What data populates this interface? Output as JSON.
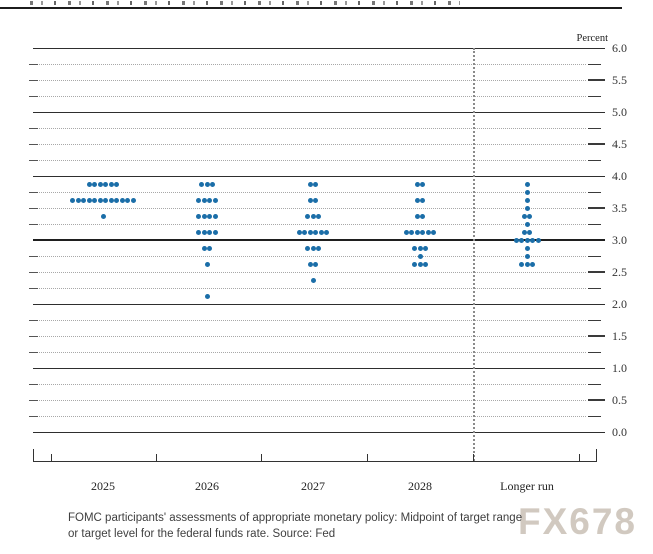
{
  "header": {
    "clipped_note": ""
  },
  "chart_data": {
    "type": "scatter",
    "subtype": "fomc-dot-plot",
    "unit_label": "Percent",
    "dot_color": "#1b6ea8",
    "y_axis": {
      "min": 0.0,
      "max": 6.0,
      "label_step": 0.5,
      "grid_step": 0.25,
      "tick_labels": [
        {
          "v": 6.0,
          "label": "6.0"
        },
        {
          "v": 5.5,
          "label": "5.5"
        },
        {
          "v": 5.0,
          "label": "5.0"
        },
        {
          "v": 4.5,
          "label": "4.5"
        },
        {
          "v": 4.0,
          "label": "4.0"
        },
        {
          "v": 3.5,
          "label": "3.5"
        },
        {
          "v": 3.0,
          "label": "3.0"
        },
        {
          "v": 2.5,
          "label": "2.5"
        },
        {
          "v": 2.0,
          "label": "2.0"
        },
        {
          "v": 1.5,
          "label": "1.5"
        },
        {
          "v": 1.0,
          "label": "1.0"
        },
        {
          "v": 0.5,
          "label": "0.5"
        },
        {
          "v": 0.0,
          "label": "0.0"
        }
      ],
      "solid_lines_at_integers": true,
      "bold_line_value": 3.0
    },
    "categories": [
      "2025",
      "2026",
      "2027",
      "2028",
      "Longer run"
    ],
    "separator_before_category": "Longer run",
    "series": [
      {
        "category": "2025",
        "dots": [
          {
            "value": 3.875,
            "count": 6
          },
          {
            "value": 3.625,
            "count": 12
          },
          {
            "value": 3.375,
            "count": 1
          }
        ]
      },
      {
        "category": "2026",
        "dots": [
          {
            "value": 3.875,
            "count": 3
          },
          {
            "value": 3.625,
            "count": 4
          },
          {
            "value": 3.375,
            "count": 4
          },
          {
            "value": 3.125,
            "count": 4
          },
          {
            "value": 2.875,
            "count": 2
          },
          {
            "value": 2.625,
            "count": 1
          },
          {
            "value": 2.125,
            "count": 1
          }
        ]
      },
      {
        "category": "2027",
        "dots": [
          {
            "value": 3.875,
            "count": 2
          },
          {
            "value": 3.625,
            "count": 2
          },
          {
            "value": 3.375,
            "count": 3
          },
          {
            "value": 3.125,
            "count": 6
          },
          {
            "value": 2.875,
            "count": 3
          },
          {
            "value": 2.625,
            "count": 2
          },
          {
            "value": 2.375,
            "count": 1
          }
        ]
      },
      {
        "category": "2028",
        "dots": [
          {
            "value": 3.875,
            "count": 2
          },
          {
            "value": 3.625,
            "count": 2
          },
          {
            "value": 3.375,
            "count": 2
          },
          {
            "value": 3.125,
            "count": 6
          },
          {
            "value": 2.875,
            "count": 3
          },
          {
            "value": 2.75,
            "count": 1
          },
          {
            "value": 2.625,
            "count": 3
          }
        ]
      },
      {
        "category": "Longer run",
        "dots": [
          {
            "value": 3.875,
            "count": 1
          },
          {
            "value": 3.75,
            "count": 1
          },
          {
            "value": 3.625,
            "count": 1
          },
          {
            "value": 3.5,
            "count": 1
          },
          {
            "value": 3.375,
            "count": 2
          },
          {
            "value": 3.25,
            "count": 1
          },
          {
            "value": 3.125,
            "count": 2
          },
          {
            "value": 3.0,
            "count": 5
          },
          {
            "value": 2.875,
            "count": 1
          },
          {
            "value": 2.75,
            "count": 1
          },
          {
            "value": 2.625,
            "count": 3
          }
        ]
      }
    ]
  },
  "caption": {
    "line1": "FOMC participants' assessments of appropriate monetary policy: Midpoint of target range",
    "line2": "or target level for the federal funds rate. Source: Fed"
  },
  "watermark": "FX678"
}
